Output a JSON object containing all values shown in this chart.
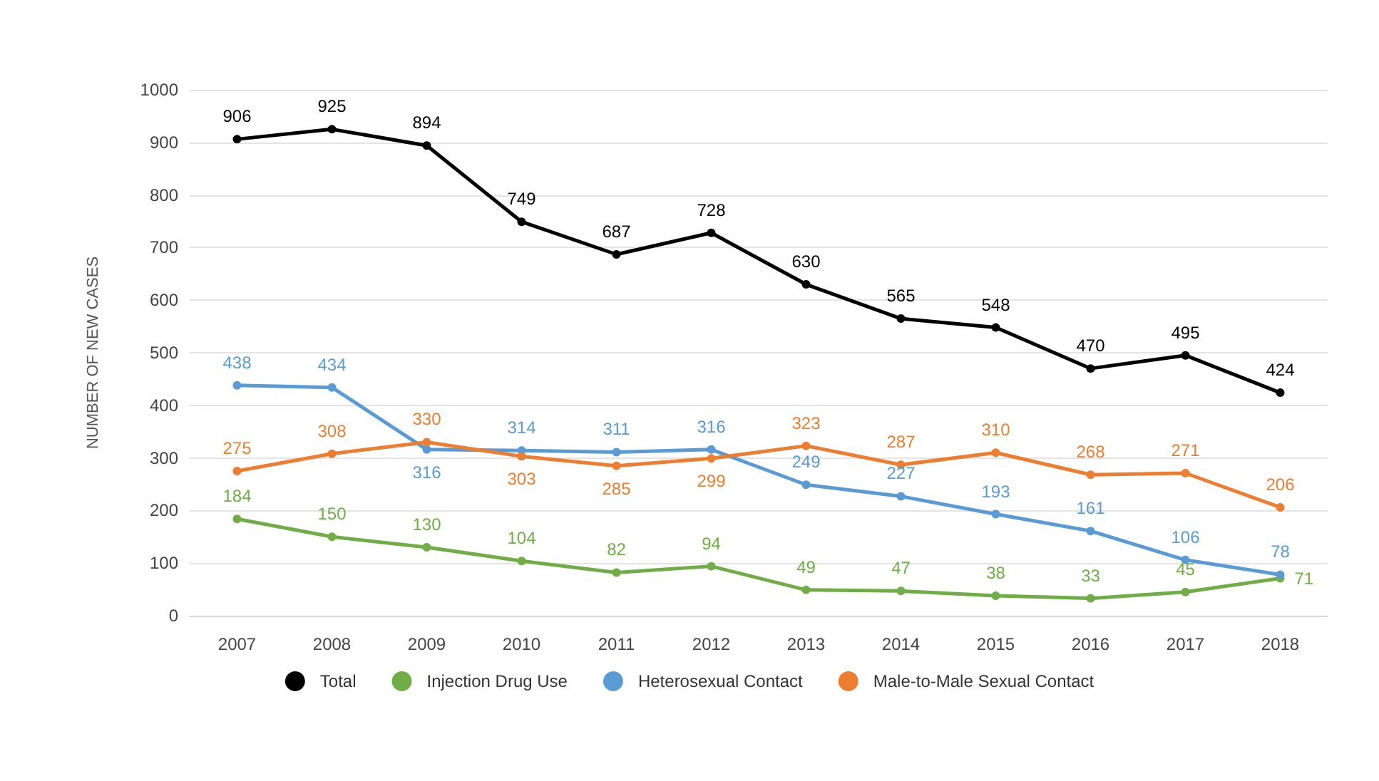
{
  "chart_data": {
    "type": "line",
    "ylabel": "NUMBER OF NEW CASES",
    "categories": [
      "2007",
      "2008",
      "2009",
      "2010",
      "2011",
      "2012",
      "2013",
      "2014",
      "2015",
      "2016",
      "2017",
      "2018"
    ],
    "series": [
      {
        "name": "Total",
        "color": "#000000",
        "values": [
          906,
          925,
          894,
          749,
          687,
          728,
          630,
          565,
          548,
          470,
          495,
          424
        ]
      },
      {
        "name": "Injection Drug Use",
        "color": "#70ad47",
        "values": [
          184,
          150,
          130,
          104,
          82,
          94,
          49,
          47,
          38,
          33,
          45,
          71
        ]
      },
      {
        "name": "Heterosexual Contact",
        "color": "#5b9bd5",
        "values": [
          438,
          434,
          316,
          314,
          311,
          316,
          249,
          227,
          193,
          161,
          106,
          78
        ]
      },
      {
        "name": "Male-to-Male Sexual Contact",
        "color": "#ed7d31",
        "values": [
          275,
          308,
          330,
          303,
          285,
          299,
          323,
          287,
          310,
          268,
          271,
          206
        ]
      }
    ],
    "ylim": [
      0,
      1000
    ],
    "yticks": [
      0,
      100,
      200,
      300,
      400,
      500,
      600,
      700,
      800,
      900,
      1000
    ],
    "grid": "y",
    "legend": "bottom",
    "marker": "circle",
    "line_style": "solid",
    "data_labels": true
  }
}
